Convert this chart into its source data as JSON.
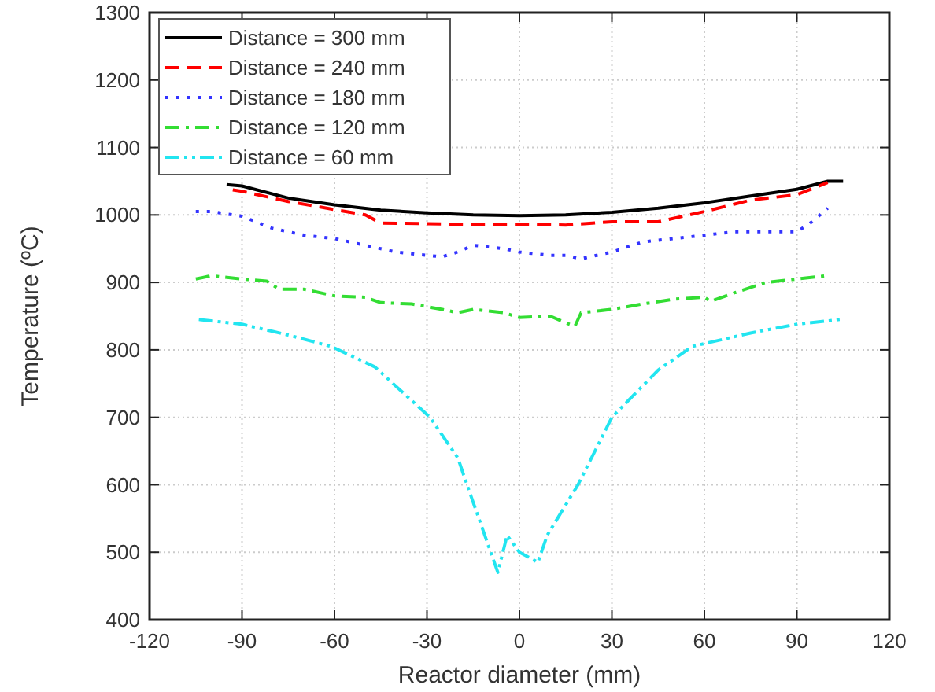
{
  "chart_data": {
    "type": "line",
    "xlabel": "Reactor diameter (mm)",
    "ylabel": "Temperature (ºC)",
    "xlim": [
      -120,
      120
    ],
    "xticks": [
      -120,
      -90,
      -60,
      -30,
      0,
      30,
      60,
      90,
      120
    ],
    "ylim": [
      400,
      1300
    ],
    "yticks": [
      400,
      500,
      600,
      700,
      800,
      900,
      1000,
      1100,
      1200,
      1300
    ],
    "grid": true,
    "legend": "top left",
    "marker": "none",
    "series": [
      {
        "name": "Distance = 300 mm",
        "color": "#000000",
        "line_style": "solid",
        "x": [
          -95,
          -90,
          -75,
          -60,
          -45,
          -30,
          -15,
          0,
          15,
          30,
          45,
          60,
          75,
          90,
          100,
          105
        ],
        "values": [
          1045,
          1043,
          1025,
          1015,
          1007,
          1003,
          1000,
          999,
          1000,
          1004,
          1010,
          1018,
          1028,
          1038,
          1050,
          1050
        ]
      },
      {
        "name": "Distance = 240 mm",
        "color": "#ff0000",
        "line_style": "dashed",
        "x": [
          -93,
          -90,
          -75,
          -60,
          -50,
          -45,
          -30,
          -15,
          0,
          15,
          30,
          45,
          60,
          75,
          90,
          100
        ],
        "values": [
          1037,
          1035,
          1020,
          1008,
          1000,
          988,
          987,
          986,
          986,
          985,
          990,
          990,
          1005,
          1022,
          1030,
          1048
        ]
      },
      {
        "name": "Distance = 180 mm",
        "color": "#3333ff",
        "line_style": "dotted",
        "x": [
          -105,
          -100,
          -90,
          -80,
          -70,
          -60,
          -50,
          -40,
          -30,
          -25,
          -20,
          -15,
          -5,
          0,
          10,
          15,
          20,
          25,
          30,
          40,
          50,
          60,
          70,
          80,
          90,
          95,
          100
        ],
        "values": [
          1005,
          1005,
          998,
          980,
          970,
          965,
          955,
          945,
          940,
          938,
          945,
          955,
          950,
          945,
          940,
          940,
          935,
          940,
          945,
          960,
          965,
          970,
          975,
          975,
          975,
          990,
          1010
        ]
      },
      {
        "name": "Distance = 120 mm",
        "color": "#33dd33",
        "line_style": "dashdot",
        "x": [
          -105,
          -100,
          -90,
          -82,
          -78,
          -70,
          -60,
          -50,
          -45,
          -35,
          -25,
          -20,
          -15,
          -5,
          0,
          10,
          15,
          18,
          20,
          30,
          40,
          50,
          60,
          62,
          70,
          80,
          90,
          100
        ],
        "values": [
          905,
          910,
          905,
          902,
          890,
          890,
          880,
          878,
          870,
          868,
          860,
          855,
          860,
          855,
          848,
          850,
          840,
          835,
          855,
          860,
          868,
          875,
          878,
          872,
          885,
          900,
          905,
          910
        ]
      },
      {
        "name": "Distance = 60 mm",
        "color": "#22e5f0",
        "line_style": "dashdotdot",
        "x": [
          -104,
          -90,
          -75,
          -61,
          -47,
          -29,
          -20,
          -17,
          -7,
          -4,
          0,
          6,
          9,
          19,
          30,
          45,
          56,
          75,
          90,
          104
        ],
        "values": [
          845,
          838,
          822,
          805,
          775,
          700,
          640,
          600,
          470,
          525,
          500,
          485,
          525,
          600,
          700,
          770,
          805,
          825,
          838,
          845
        ]
      }
    ]
  }
}
